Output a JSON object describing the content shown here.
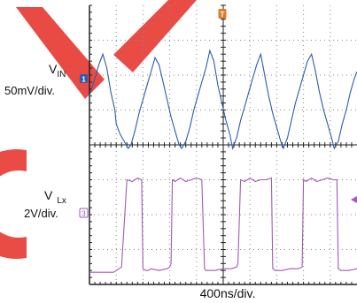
{
  "labels": {
    "vin_main": "V",
    "vin_sub": "IN",
    "vin_scale": "50mV/div.",
    "vlx_main": "V",
    "vlx_sub": "Lx",
    "vlx_scale": "2V/div.",
    "time_scale": "400ns/div."
  },
  "markers": {
    "ch1": "1",
    "ch3": "3",
    "trigger": "T"
  },
  "colors": {
    "watermark": "#e8413b",
    "vin_trace": "#2c5cae",
    "vlx_trace": "#a15ab5",
    "trigger": "#e07b28",
    "grid_frame": "#222222",
    "grid_dots": "#888888"
  },
  "chart_data": {
    "type": "line",
    "x_divisions": 10,
    "y_divisions": 8,
    "series": [
      {
        "name": "VIN",
        "channel": 1,
        "x": [
          0,
          0.2,
          0.35,
          0.5,
          0.65,
          0.8,
          0.95,
          1.0,
          1.15,
          1.3,
          1.45,
          1.55,
          1.7,
          1.85,
          2.0,
          2.15,
          2.3,
          2.45,
          2.6,
          2.75,
          2.9,
          3.05,
          3.2,
          3.35,
          3.45,
          3.6,
          3.75,
          3.9,
          4.05,
          4.2,
          4.35,
          4.5,
          4.65,
          4.8,
          4.95,
          5.1,
          5.25,
          5.35,
          5.5,
          5.65,
          5.8,
          5.95,
          6.1,
          6.25,
          6.4,
          6.55,
          6.7,
          6.85,
          7.0,
          7.15,
          7.25,
          7.4,
          7.55,
          7.7,
          7.85,
          8.0,
          8.15,
          8.3,
          8.45,
          8.6,
          8.75,
          8.9,
          9.05,
          9.15,
          9.3,
          9.45,
          9.6,
          9.75,
          9.9,
          10.0
        ],
        "values": [
          5.4,
          5.9,
          6.3,
          6.6,
          6.2,
          5.5,
          5.0,
          4.6,
          4.3,
          4.1,
          3.9,
          4.0,
          4.4,
          4.9,
          5.3,
          5.7,
          6.1,
          6.5,
          6.3,
          5.8,
          5.3,
          4.8,
          4.4,
          4.0,
          3.9,
          4.1,
          4.5,
          5.0,
          5.4,
          5.8,
          6.2,
          6.7,
          6.4,
          5.7,
          5.2,
          4.7,
          4.3,
          3.9,
          4.2,
          4.7,
          5.1,
          5.5,
          5.9,
          6.3,
          6.6,
          6.0,
          5.4,
          4.9,
          4.5,
          4.1,
          3.9,
          4.2,
          4.7,
          5.2,
          5.6,
          6.0,
          6.4,
          6.6,
          6.1,
          5.5,
          5.0,
          4.6,
          4.2,
          3.9,
          4.1,
          4.6,
          5.0,
          5.5,
          5.9,
          6.1
        ]
      },
      {
        "name": "VLx",
        "channel": 3,
        "x": [
          0,
          0.85,
          0.9,
          1.0,
          1.1,
          1.2,
          1.4,
          1.6,
          1.8,
          1.95,
          2.0,
          2.1,
          2.2,
          2.3,
          2.6,
          2.9,
          3.0,
          3.05,
          3.1,
          3.2,
          3.4,
          3.6,
          3.8,
          4.0,
          4.2,
          4.3,
          4.35,
          4.45,
          4.7,
          5.0,
          5.3,
          5.5,
          5.55,
          5.65,
          5.8,
          6.0,
          6.2,
          6.4,
          6.6,
          6.8,
          6.85,
          6.95,
          7.2,
          7.5,
          7.8,
          7.95,
          8.0,
          8.1,
          8.3,
          8.5,
          8.7,
          8.9,
          9.1,
          9.25,
          9.3,
          9.4,
          9.7,
          10.0
        ],
        "values": [
          0.35,
          0.35,
          0.35,
          0.4,
          0.45,
          0.5,
          3.0,
          2.95,
          3.05,
          3.0,
          0.45,
          0.4,
          0.4,
          0.45,
          0.4,
          0.45,
          0.5,
          0.6,
          3.0,
          2.95,
          3.05,
          2.95,
          3.0,
          3.05,
          3.0,
          0.45,
          0.4,
          0.4,
          0.4,
          0.45,
          0.45,
          0.5,
          0.6,
          3.0,
          2.95,
          3.05,
          2.95,
          3.0,
          3.0,
          3.05,
          0.45,
          0.4,
          0.4,
          0.45,
          0.45,
          0.5,
          3.0,
          2.95,
          3.05,
          2.95,
          3.0,
          3.05,
          3.0,
          3.0,
          0.45,
          0.4,
          0.4,
          0.45
        ]
      }
    ],
    "grid": true
  }
}
